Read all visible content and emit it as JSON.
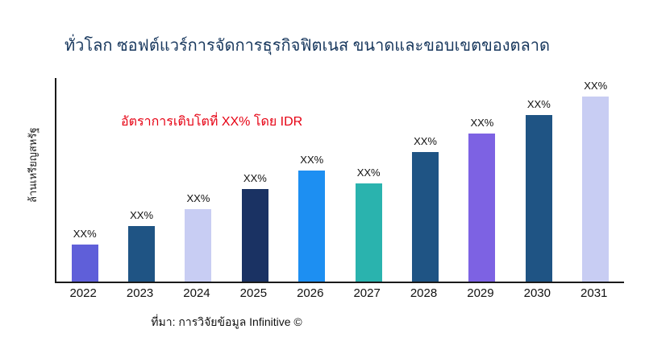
{
  "chart_data": {
    "type": "bar",
    "title": "ทั่วโลก ซอฟต์แวร์การจัดการธุรกิจฟิตเนส ขนาดและขอบเขตของตลาด",
    "ylabel": "ล้านเหรียญสหรัฐ",
    "annotation": "อัตราการเติบโตที่ XX% โดย IDR",
    "source": "ที่มา: การวิจัยข้อมูล Infinitive ©",
    "categories": [
      "2022",
      "2023",
      "2024",
      "2025",
      "2026",
      "2027",
      "2028",
      "2029",
      "2030",
      "2031"
    ],
    "values": [
      20,
      30,
      39,
      50,
      60,
      53,
      70,
      80,
      90,
      100
    ],
    "value_note": "actual values masked in chart; heights are relative percent of tallest bar",
    "bar_labels": [
      "XX%",
      "XX%",
      "XX%",
      "XX%",
      "XX%",
      "XX%",
      "XX%",
      "XX%",
      "XX%",
      "XX%"
    ],
    "bar_colors": [
      "#5f5fd9",
      "#1f5484",
      "#c8cdf3",
      "#1a3263",
      "#1d8ff2",
      "#2ab3ae",
      "#1f5484",
      "#7d62e3",
      "#1f5484",
      "#c8cdf3"
    ],
    "ylim": [
      0,
      100
    ],
    "grid": "off",
    "legend": "none",
    "colors": {
      "title_text": "#17375d",
      "annotation_text": "#e60012",
      "axis": "#1a1a1a",
      "background": "#ffffff"
    }
  }
}
